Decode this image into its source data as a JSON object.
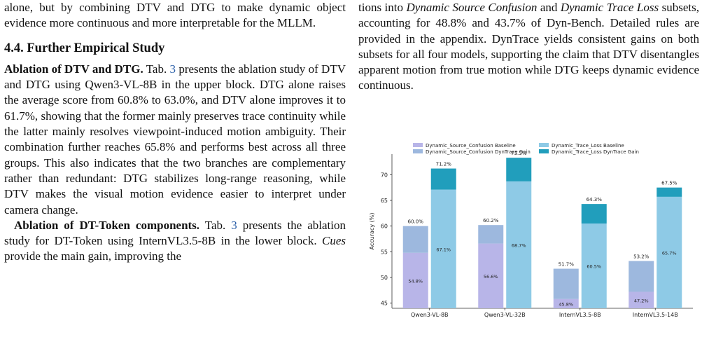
{
  "left": {
    "para1": [
      {
        "t": "alone, but by combining DTV and DTG to make dynamic object evidence more continuous and more interpretable for the MLLM."
      }
    ],
    "heading": "4.4. Further Empirical Study",
    "para2": [
      {
        "t": "Ablation of DTV and DTG.",
        "s": "b"
      },
      {
        "t": " Tab. "
      },
      {
        "t": "3",
        "s": "ref"
      },
      {
        "t": " presents the ablation study of DTV and DTG using Qwen3-VL-8B in the upper block. DTG alone raises the average score from 60.8% to 63.0%, and DTV alone improves it to 61.7%, showing that the former mainly preserves trace continuity while the latter mainly resolves viewpoint-induced motion ambiguity. Their combination further reaches 65.8% and performs best across all three groups. This also indicates that the two branches are complementary rather than redundant: DTG stabilizes long-range reasoning, while DTV makes the visual motion evidence easier to interpret under camera change."
      }
    ],
    "para3": [
      {
        "t": "Ablation of DT-Token components.",
        "s": "b"
      },
      {
        "t": " Tab. "
      },
      {
        "t": "3",
        "s": "ref"
      },
      {
        "t": " presents the ablation study for DT-Token using InternVL3.5-8B in the lower block. "
      },
      {
        "t": "Cues",
        "s": "i"
      },
      {
        "t": " provide the main gain, improving the"
      }
    ]
  },
  "right": {
    "para1": [
      {
        "t": "tions into "
      },
      {
        "t": "Dynamic Source Confusion",
        "s": "i"
      },
      {
        "t": " and "
      },
      {
        "t": "Dynamic Trace Loss",
        "s": "i"
      },
      {
        "t": " subsets, accounting for 48.8% and 43.7% of Dyn-Bench. Detailed rules are provided in the appendix. DynTrace yields consistent gains on both subsets for all four models, supporting the claim that DTV disentangles apparent motion from true motion while DTG keeps dynamic evidence continuous."
      }
    ]
  },
  "chart_data": {
    "type": "bar",
    "categories": [
      "Qwen3-VL-8B",
      "Qwen3-VL-32B",
      "InternVL3.5-8B",
      "InternVL3.5-14B"
    ],
    "series": [
      {
        "name": "Dynamic_Source_Confusion Baseline",
        "values": [
          54.8,
          56.6,
          45.8,
          47.2
        ],
        "color": "#b8b5e8"
      },
      {
        "name": "Dynamic_Source_Confusion DynTrace Gain",
        "values": [
          5.2,
          3.6,
          5.9,
          6.0
        ],
        "color": "#9db8de"
      },
      {
        "name": "Dynamic_Trace_Loss Baseline",
        "values": [
          67.1,
          68.7,
          60.5,
          65.7
        ],
        "color": "#8ecae6"
      },
      {
        "name": "Dynamic_Trace_Loss DynTrace Gain",
        "values": [
          4.1,
          4.6,
          3.8,
          1.8
        ],
        "color": "#219ebc"
      }
    ],
    "baseline_labels": {
      "source": [
        "54.8%",
        "56.6%",
        "45.8%",
        "47.2%"
      ],
      "trace": [
        "67.1%",
        "68.7%",
        "60.5%",
        "65.7%"
      ]
    },
    "total_labels": {
      "source": [
        "60.0%",
        "60.2%",
        "51.7%",
        "53.2%"
      ],
      "trace": [
        "71.2%",
        "73.3%",
        "64.3%",
        "67.5%"
      ]
    },
    "ylabel": "Accuracy (%)",
    "yticks": [
      45,
      50,
      55,
      60,
      65,
      70
    ],
    "ylim": [
      44,
      74
    ],
    "legend": "top",
    "grid": false
  }
}
